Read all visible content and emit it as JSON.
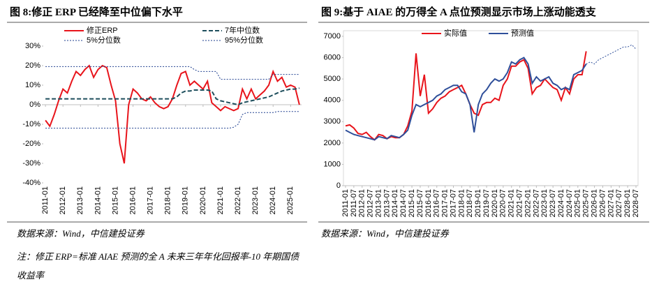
{
  "chart_data": [
    {
      "type": "line",
      "title": "图 8:修正 ERP 已经降至中位偏下水平",
      "x": [
        "2011-01",
        "2011-04",
        "2011-07",
        "2011-10",
        "2012-01",
        "2012-04",
        "2012-07",
        "2012-10",
        "2013-01",
        "2013-04",
        "2013-07",
        "2013-10",
        "2014-01",
        "2014-04",
        "2014-07",
        "2014-10",
        "2015-01",
        "2015-04",
        "2015-07",
        "2015-10",
        "2016-01",
        "2016-04",
        "2016-07",
        "2016-10",
        "2017-01",
        "2017-04",
        "2017-07",
        "2017-10",
        "2018-01",
        "2018-04",
        "2018-07",
        "2018-10",
        "2019-01",
        "2019-04",
        "2019-07",
        "2019-10",
        "2020-01",
        "2020-04",
        "2020-07",
        "2020-10",
        "2021-01",
        "2021-04",
        "2021-07",
        "2021-10",
        "2022-01",
        "2022-04",
        "2022-07",
        "2022-10",
        "2023-01",
        "2023-04",
        "2023-07",
        "2023-10",
        "2024-01",
        "2024-04",
        "2024-07",
        "2024-10",
        "2025-01",
        "2025-04",
        "2025-07"
      ],
      "xticks": [
        "2011-01",
        "2012-01",
        "2013-01",
        "2014-01",
        "2015-01",
        "2016-01",
        "2017-01",
        "2018-01",
        "2019-01",
        "2020-01",
        "2021-01",
        "2022-01",
        "2023-01",
        "2024-01",
        "2025-01"
      ],
      "ylim": [
        -40,
        30
      ],
      "yticks": [
        {
          "value": -40,
          "label": "-40%"
        },
        {
          "value": -30,
          "label": "-30%"
        },
        {
          "value": -20,
          "label": "-20%"
        },
        {
          "value": -10,
          "label": "-10%"
        },
        {
          "value": 0,
          "label": "0%"
        },
        {
          "value": 10,
          "label": "10%"
        },
        {
          "value": 20,
          "label": "20%"
        },
        {
          "value": 30,
          "label": "30%"
        }
      ],
      "legend": "upper center",
      "series": [
        {
          "name": "修正ERP",
          "color": "#e8141b",
          "dash": "solid",
          "values": [
            -8,
            -11,
            -5,
            2,
            8,
            6,
            12,
            17,
            15,
            18,
            20,
            14,
            18,
            20,
            19,
            10,
            2,
            -20,
            -30,
            0,
            8,
            6,
            3,
            2,
            4,
            1,
            -1,
            -2,
            -1,
            3,
            10,
            16,
            17,
            10,
            12,
            10,
            8,
            12,
            1,
            -1,
            -3,
            -1,
            -2,
            -3,
            -2,
            8,
            3,
            8,
            3,
            5,
            7,
            10,
            17,
            12,
            14,
            9,
            10,
            9,
            0
          ]
        },
        {
          "name": "7年中位数",
          "color": "#1d4e5c",
          "dash": "dashed",
          "values": [
            3,
            3,
            3,
            3,
            3,
            3,
            3,
            3,
            3,
            3,
            3,
            3,
            3,
            3,
            3,
            3,
            3,
            3,
            3,
            3,
            3,
            3,
            3,
            3,
            3,
            3,
            3,
            3,
            3,
            3,
            4,
            6,
            7,
            7,
            7.5,
            7.5,
            7.5,
            7.5,
            7,
            3,
            2,
            1.5,
            1,
            0.5,
            0,
            1,
            1.5,
            2,
            2.5,
            3,
            3.5,
            4,
            5,
            6,
            7,
            7.5,
            8,
            8,
            8.5
          ]
        },
        {
          "name": "5%分位数",
          "color": "#1f3f8f",
          "dash": "dotted",
          "values": [
            -12,
            -12,
            -12,
            -12,
            -12,
            -12,
            -12,
            -12,
            -12,
            -12,
            -12,
            -12,
            -12,
            -12,
            -12,
            -12,
            -12,
            -12,
            -12,
            -12,
            -12,
            -12,
            -12,
            -12,
            -12,
            -12,
            -12,
            -12,
            -12,
            -12,
            -12,
            -12,
            -12,
            -12,
            -12,
            -12,
            -12,
            -12,
            -12,
            -12,
            -12,
            -12,
            -12,
            -11.5,
            -10,
            -5,
            -4,
            -4,
            -4,
            -4,
            -4,
            -4,
            -4,
            -3.5,
            -3.5,
            -3.5,
            -3.5,
            -3.5,
            -3.5
          ]
        },
        {
          "name": "95%分位数",
          "color": "#1f3f8f",
          "dash": "dotted",
          "values": [
            19.5,
            19.5,
            19.5,
            19.5,
            19.5,
            19.5,
            19.5,
            19.5,
            19.5,
            19.5,
            19.5,
            19.5,
            19.5,
            19.5,
            19.5,
            19.5,
            19.5,
            19.5,
            19.5,
            19.5,
            19.5,
            19.5,
            19.5,
            19.5,
            19.5,
            19.5,
            19.5,
            19.5,
            19.5,
            19.5,
            19.5,
            19.5,
            19.5,
            19.5,
            18,
            17,
            17,
            17,
            17,
            17,
            13,
            13,
            13,
            13,
            13,
            13,
            13,
            13,
            13,
            13,
            13,
            13,
            15.5,
            15.5,
            15.5,
            15.5,
            15.5,
            15.5,
            15.5
          ]
        }
      ],
      "source": "数据来源：Wind，中信建投证券",
      "note": "注：修正 ERP=标准 AIAE 预测的全 A 未来三年年化回报率-10 年期国债收益率"
    },
    {
      "type": "line",
      "title": "图 9:基于 AIAE 的万得全 A 点位预测显示市场上涨动能透支",
      "x": [
        "2011-01",
        "2011-04",
        "2011-07",
        "2011-10",
        "2012-01",
        "2012-04",
        "2012-07",
        "2012-10",
        "2013-01",
        "2013-04",
        "2013-07",
        "2013-10",
        "2014-01",
        "2014-04",
        "2014-07",
        "2014-10",
        "2015-01",
        "2015-04",
        "2015-07",
        "2015-10",
        "2016-01",
        "2016-04",
        "2016-07",
        "2016-10",
        "2017-01",
        "2017-04",
        "2017-07",
        "2017-10",
        "2018-01",
        "2018-04",
        "2018-07",
        "2018-10",
        "2019-01",
        "2019-04",
        "2019-07",
        "2019-10",
        "2020-01",
        "2020-04",
        "2020-07",
        "2020-10",
        "2021-01",
        "2021-04",
        "2021-07",
        "2021-10",
        "2022-01",
        "2022-04",
        "2022-07",
        "2022-10",
        "2023-01",
        "2023-04",
        "2023-07",
        "2023-10",
        "2024-01",
        "2024-04",
        "2024-07",
        "2024-10",
        "2025-01",
        "2025-04",
        "2025-07",
        "2025-10",
        "2026-01",
        "2026-04",
        "2026-07",
        "2026-10",
        "2027-01",
        "2027-04",
        "2027-07",
        "2027-10",
        "2028-01",
        "2028-04",
        "2028-07"
      ],
      "xticks": [
        "2011-01",
        "2011-07",
        "2012-01",
        "2012-07",
        "2013-01",
        "2013-07",
        "2014-01",
        "2014-07",
        "2015-01",
        "2015-07",
        "2016-01",
        "2016-07",
        "2017-01",
        "2017-07",
        "2018-01",
        "2018-07",
        "2019-01",
        "2019-07",
        "2020-01",
        "2020-07",
        "2021-01",
        "2021-07",
        "2022-01",
        "2022-07",
        "2023-01",
        "2023-07",
        "2024-01",
        "2024-07",
        "2025-01",
        "2025-07",
        "2026-01",
        "2026-07",
        "2027-01",
        "2027-07",
        "2028-01",
        "2028-07"
      ],
      "ylim": [
        0,
        7000
      ],
      "yticks": [
        0,
        1000,
        2000,
        3000,
        4000,
        5000,
        6000,
        7000
      ],
      "legend": "upper center",
      "series": [
        {
          "name": "实际值",
          "color": "#e8141b",
          "dash": "solid",
          "values": [
            2800,
            2850,
            2700,
            2450,
            2400,
            2500,
            2300,
            2150,
            2400,
            2350,
            2200,
            2300,
            2250,
            2250,
            2400,
            2800,
            3500,
            6200,
            4200,
            5200,
            3400,
            3600,
            3900,
            4100,
            4200,
            4400,
            4500,
            4600,
            4700,
            4300,
            3800,
            3400,
            3300,
            3800,
            3900,
            3900,
            4100,
            4000,
            4700,
            5000,
            5600,
            5600,
            5800,
            5900,
            5500,
            4300,
            4600,
            4700,
            5000,
            4800,
            4600,
            4500,
            4000,
            4600,
            4300,
            5000,
            5200,
            5200,
            6300,
            null,
            null,
            null,
            null,
            null,
            null,
            null,
            null,
            null,
            null,
            null,
            null
          ]
        },
        {
          "name": "预测值",
          "color": "#2f4f9a",
          "dash": "solid",
          "dotted_from": "2025-07",
          "values": [
            2600,
            2500,
            2400,
            2350,
            2300,
            2250,
            2200,
            2150,
            2300,
            2250,
            2200,
            2350,
            2300,
            2250,
            2400,
            2600,
            3300,
            3800,
            3700,
            3800,
            3900,
            4000,
            4200,
            4300,
            4500,
            4600,
            4700,
            4700,
            4400,
            4300,
            3800,
            2500,
            3800,
            4300,
            4500,
            4800,
            5000,
            4900,
            5000,
            5300,
            5800,
            5700,
            5900,
            6000,
            5700,
            4800,
            5100,
            4900,
            5000,
            5100,
            4800,
            4700,
            4500,
            4600,
            4500,
            5200,
            5300,
            5400,
            5700,
            5800,
            5700,
            5900,
            6000,
            6100,
            6200,
            6300,
            6400,
            6500,
            6500,
            6600,
            6400
          ]
        }
      ],
      "source": "数据来源：Wind，中信建投证券"
    }
  ]
}
